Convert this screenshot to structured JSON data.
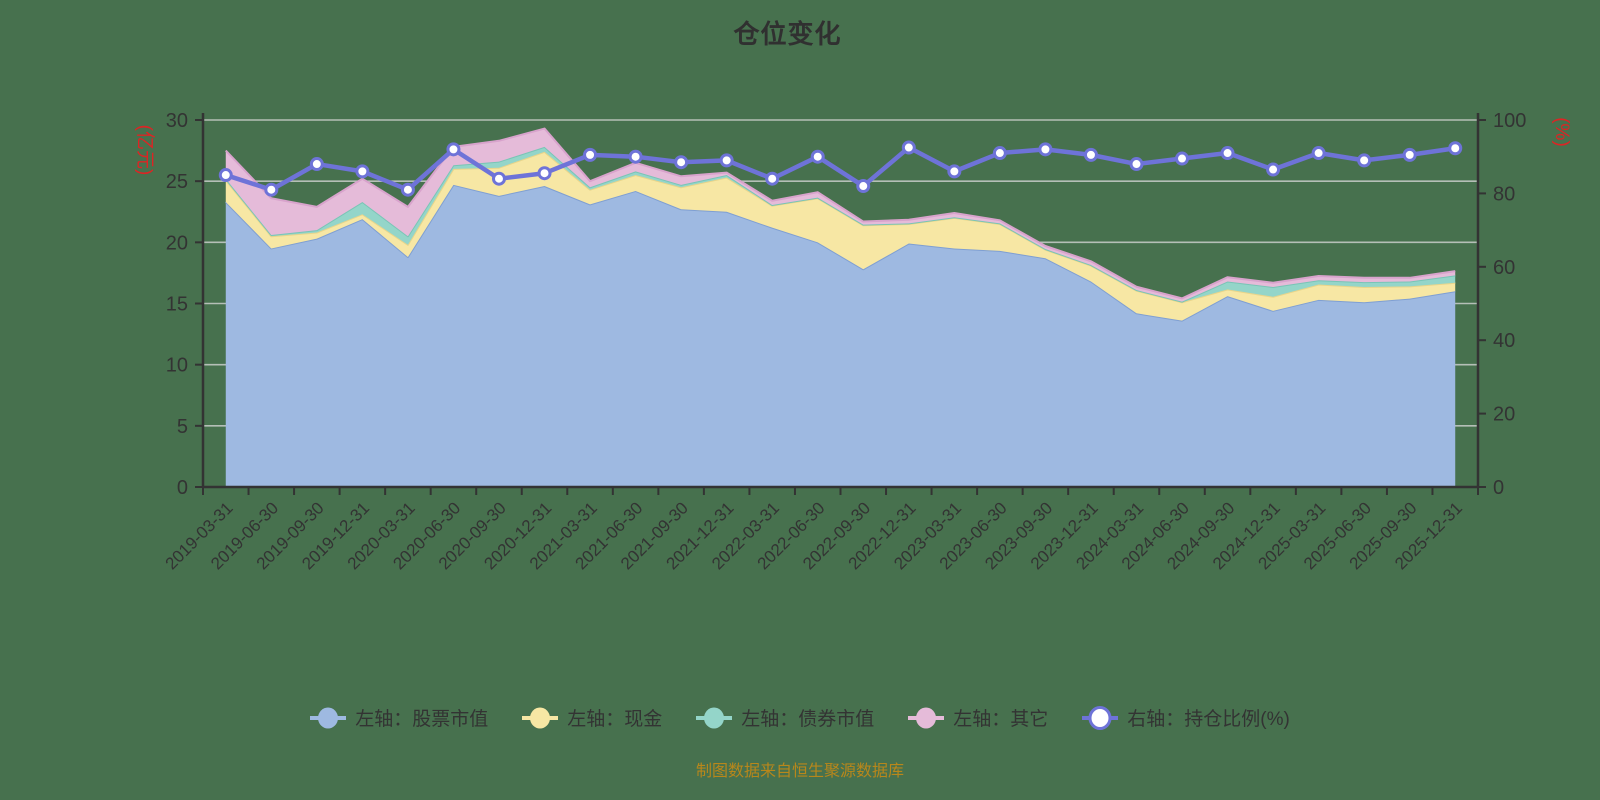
{
  "title": "仓位变化",
  "source_note": "制图数据来自恒生聚源数据库",
  "colors": {
    "background": "#47714E",
    "title_text": "#303030",
    "axis_line": "#333333",
    "axis_text": "#333333",
    "grid_line": "#DADADA",
    "unit_text": "#DD2424",
    "source_text": "#B8871B",
    "dot_fill": "#FFFFFF"
  },
  "chart_data": {
    "type": "area",
    "stacked": true,
    "legend_position": "bottom",
    "x": [
      "2019-03-31",
      "2019-06-30",
      "2019-09-30",
      "2019-12-31",
      "2020-03-31",
      "2020-06-30",
      "2020-09-30",
      "2020-12-31",
      "2021-03-31",
      "2021-06-30",
      "2021-09-30",
      "2021-12-31",
      "2022-03-31",
      "2022-06-30",
      "2022-09-30",
      "2022-12-31",
      "2023-03-31",
      "2023-06-30",
      "2023-09-30",
      "2023-12-31",
      "2024-03-31",
      "2024-06-30",
      "2024-09-30",
      "2024-12-31",
      "2025-03-31",
      "2025-06-30",
      "2025-09-30",
      "2025-12-31"
    ],
    "left_axis": {
      "name": "(亿元)",
      "min": 0,
      "max": 30,
      "ticks": [
        0,
        5,
        10,
        15,
        20,
        25,
        30
      ]
    },
    "right_axis": {
      "name": "(%)",
      "min": 0,
      "max": 100,
      "ticks": [
        0,
        20,
        40,
        60,
        80,
        100
      ]
    },
    "series": [
      {
        "name": "左轴：股票市值",
        "id": "stock-market-value",
        "type": "area",
        "axis": "left",
        "color": "#9EB9E1",
        "edge": "#7F9FD2",
        "values": [
          23.3,
          19.5,
          20.3,
          21.9,
          18.8,
          24.7,
          23.8,
          24.6,
          23.1,
          24.2,
          22.7,
          22.5,
          21.2,
          20.0,
          17.8,
          19.9,
          19.5,
          19.3,
          18.7,
          16.8,
          14.2,
          13.6,
          15.6,
          14.4,
          15.3,
          15.1,
          15.4,
          16.0
        ]
      },
      {
        "name": "左轴：现金",
        "id": "cash",
        "type": "area",
        "axis": "left",
        "color": "#F7E7A4",
        "edge": "#E8D58B",
        "values": [
          1.8,
          1.0,
          0.5,
          0.4,
          1.0,
          1.3,
          2.3,
          2.8,
          1.2,
          1.3,
          1.8,
          2.8,
          1.8,
          3.6,
          3.6,
          1.6,
          2.5,
          2.2,
          0.7,
          1.3,
          1.85,
          1.5,
          0.55,
          1.15,
          1.25,
          1.25,
          1.0,
          0.7
        ]
      },
      {
        "name": "左轴：债券市值",
        "id": "bond-market-value",
        "type": "area",
        "axis": "left",
        "color": "#94D5C9",
        "edge": "#79C5B6",
        "values": [
          0.1,
          0.1,
          0.2,
          1.0,
          0.7,
          0.3,
          0.5,
          0.4,
          0.2,
          0.3,
          0.2,
          0.2,
          0.05,
          0.05,
          0.05,
          0.05,
          0.05,
          0.05,
          0.05,
          0.05,
          0.05,
          0.05,
          0.65,
          0.8,
          0.35,
          0.4,
          0.4,
          0.6
        ]
      },
      {
        "name": "左轴：其它",
        "id": "other",
        "type": "area",
        "axis": "left",
        "color": "#E5BBD9",
        "edge": "#D8A3CC",
        "values": [
          2.3,
          3.0,
          1.9,
          1.9,
          2.4,
          1.5,
          1.7,
          1.5,
          0.5,
          0.7,
          0.7,
          0.2,
          0.35,
          0.45,
          0.25,
          0.3,
          0.35,
          0.25,
          0.25,
          0.3,
          0.27,
          0.27,
          0.35,
          0.35,
          0.35,
          0.35,
          0.3,
          0.35
        ]
      },
      {
        "name": "右轴：持仓比例(%)",
        "id": "position-ratio",
        "type": "line",
        "axis": "right",
        "color": "#6E73D8",
        "edge": "#6E73D8",
        "values": [
          85,
          81,
          88,
          86,
          81,
          92,
          84,
          85.5,
          90.5,
          90,
          88.5,
          89,
          84,
          90,
          82,
          92.5,
          86,
          91,
          92,
          90.5,
          88,
          89.5,
          91,
          86.5,
          91,
          89,
          90.5,
          92.3
        ]
      }
    ]
  }
}
